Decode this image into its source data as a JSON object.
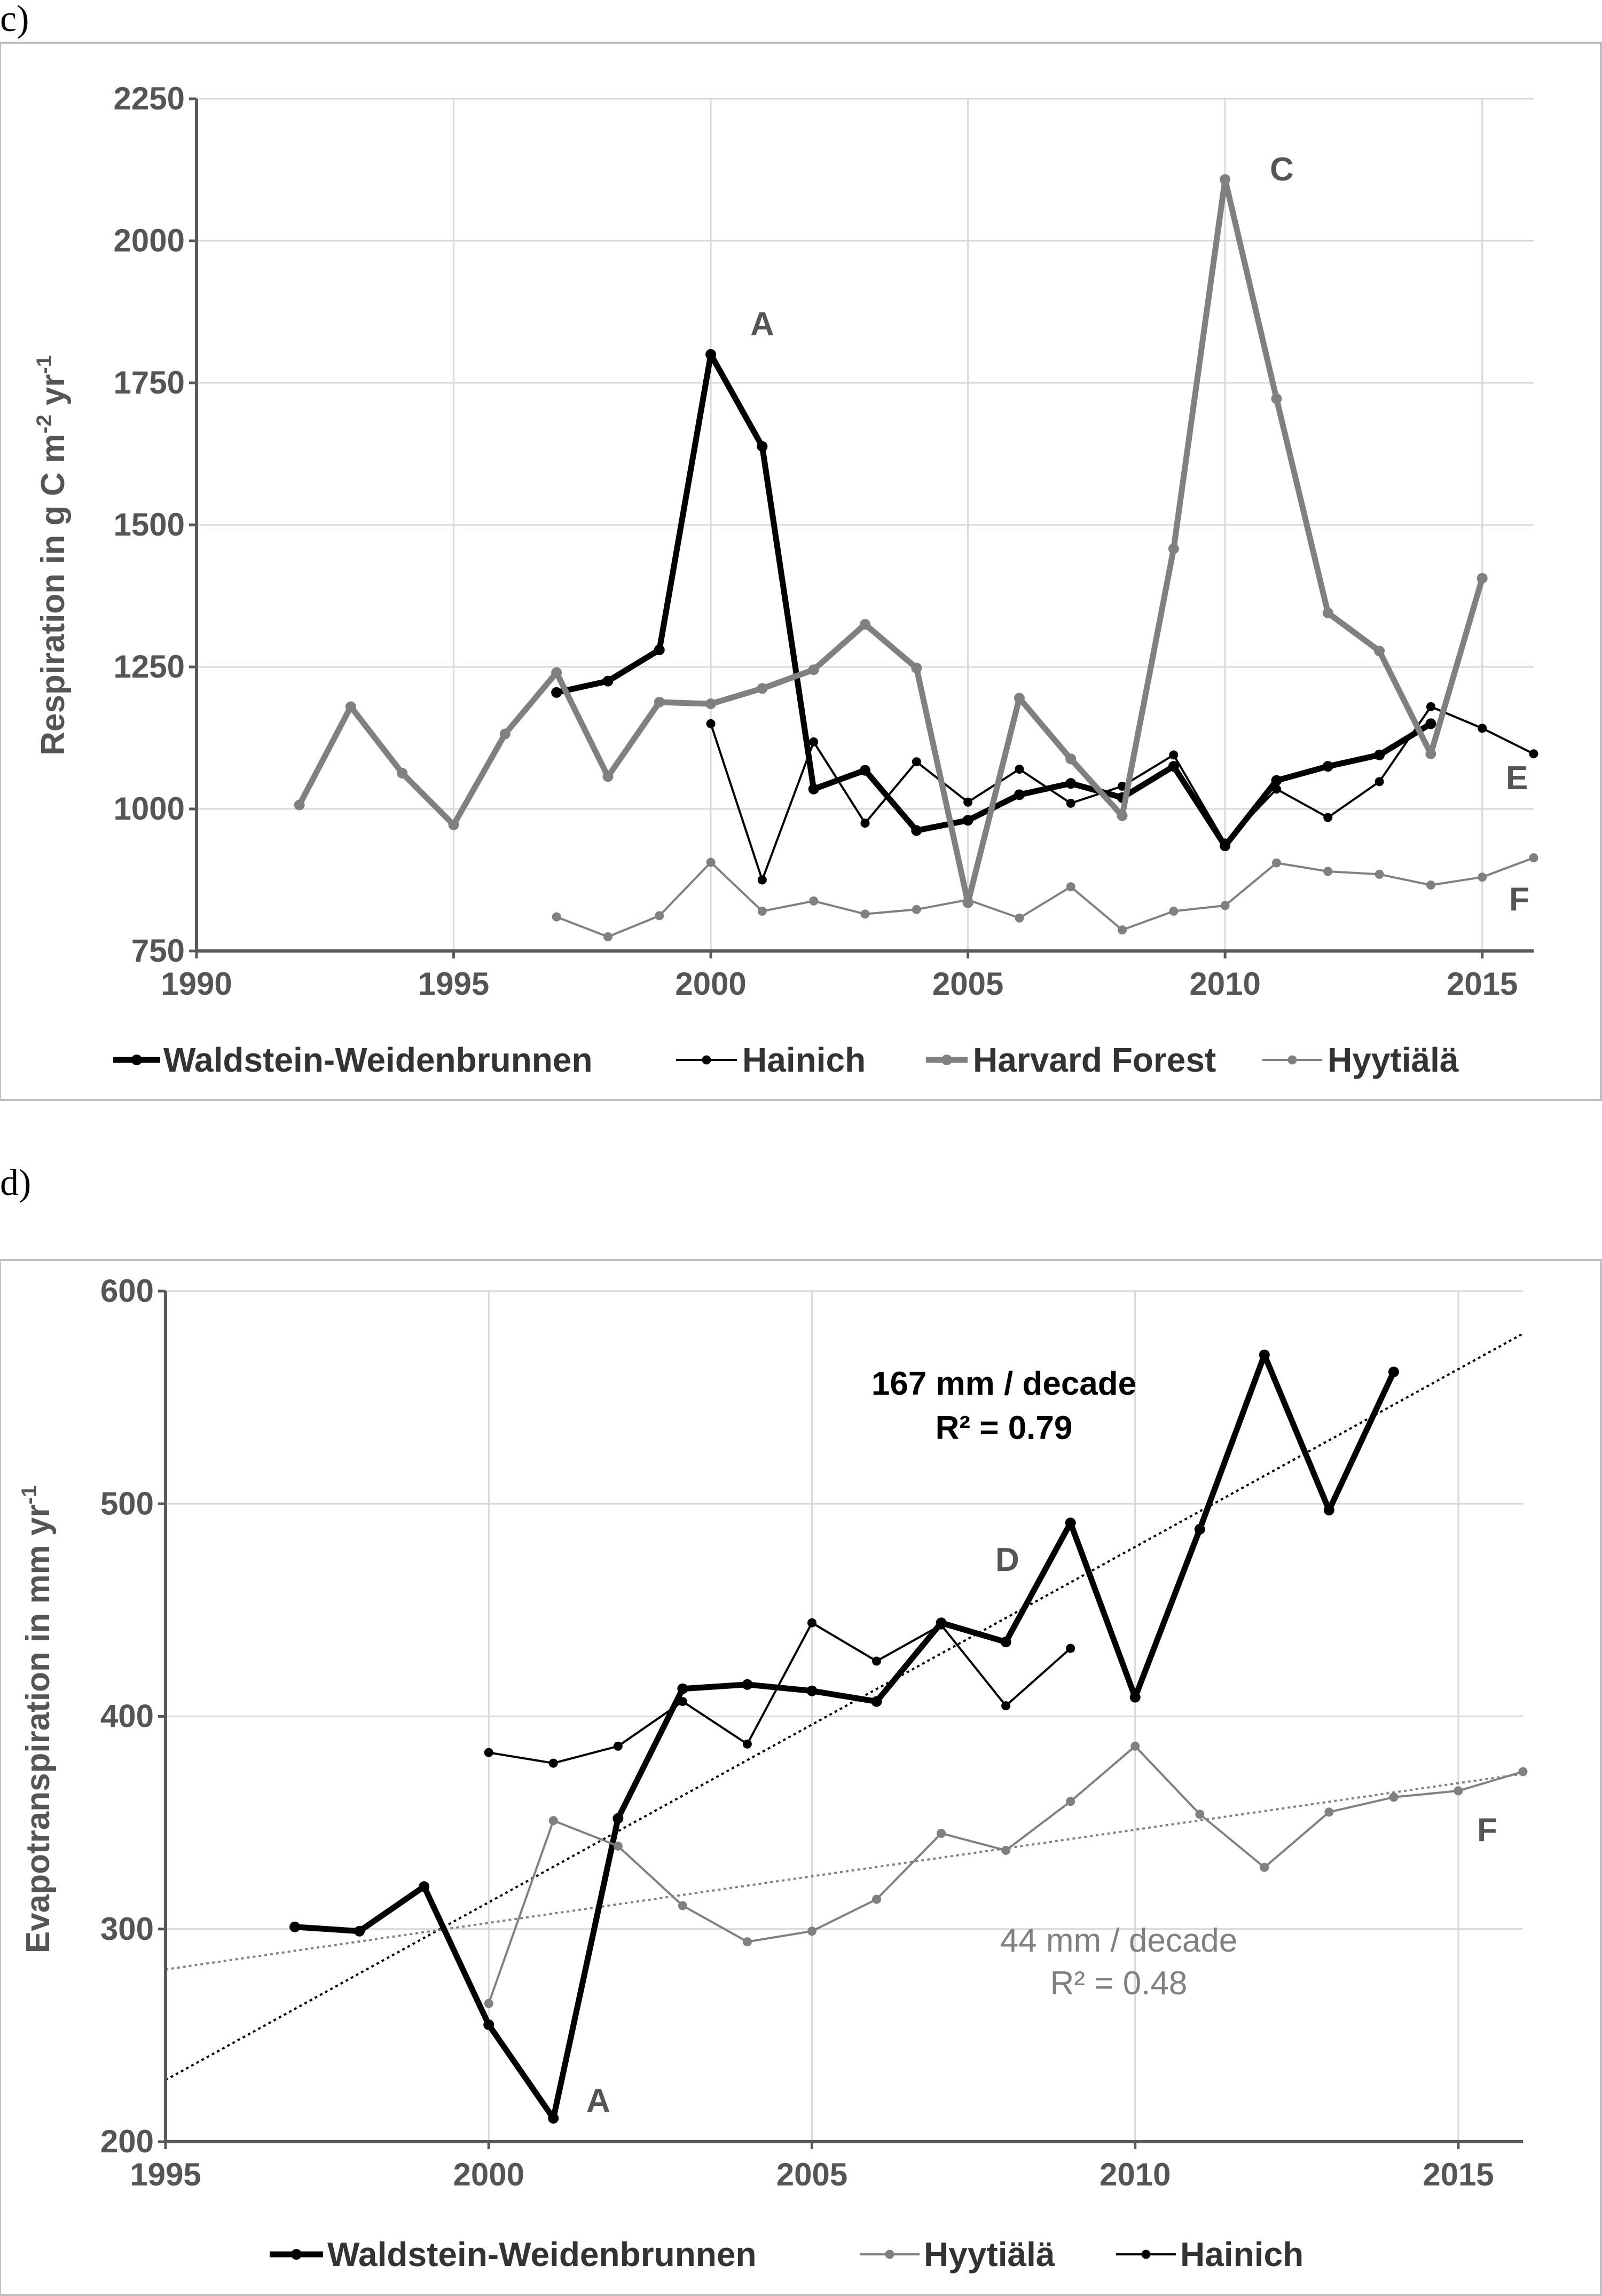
{
  "chart_data": [
    {
      "panel_label": "c)",
      "type": "line",
      "ylabel": {
        "main": "Respiration in g C m",
        "sup1": "-2",
        "mid": " yr",
        "sup2": "-1"
      },
      "xlim": [
        1990,
        2016
      ],
      "ylim": [
        750,
        2250
      ],
      "xticks": [
        "1990",
        "1995",
        "2000",
        "2005",
        "2010",
        "2015"
      ],
      "yticks": [
        "750",
        "1000",
        "1250",
        "1500",
        "1750",
        "2000",
        "2250"
      ],
      "grid": true,
      "legend_position": "bottom",
      "series": [
        {
          "name": "Waldstein-Weidenbrunnen",
          "color": "#000000",
          "width": "thick",
          "x": [
            1997,
            1998,
            1999,
            2000,
            2001,
            2002,
            2003,
            2004,
            2005,
            2006,
            2007,
            2008,
            2009,
            2010,
            2011,
            2012,
            2013,
            2014
          ],
          "y": [
            1205,
            1225,
            1280,
            1800,
            1638,
            1035,
            1068,
            962,
            980,
            1025,
            1045,
            1020,
            1075,
            935,
            1050,
            1075,
            1095,
            1150
          ]
        },
        {
          "name": "Hainich",
          "color": "#000000",
          "width": "thin",
          "x": [
            2000,
            2001,
            2002,
            2003,
            2004,
            2005,
            2006,
            2007,
            2008,
            2009,
            2010,
            2011,
            2012,
            2013,
            2014,
            2015,
            2016
          ],
          "y": [
            1150,
            875,
            1118,
            975,
            1083,
            1012,
            1070,
            1010,
            1040,
            1095,
            940,
            1035,
            985,
            1048,
            1180,
            1142,
            1097
          ]
        },
        {
          "name": "Harvard Forest",
          "color": "#808080",
          "width": "thick",
          "x": [
            1992,
            1993,
            1994,
            1995,
            1996,
            1997,
            1998,
            1999,
            2000,
            2001,
            2002,
            2003,
            2004,
            2005,
            2006,
            2007,
            2008,
            2009,
            2010,
            2011,
            2012,
            2013,
            2014,
            2015
          ],
          "y": [
            1007,
            1180,
            1063,
            972,
            1132,
            1240,
            1057,
            1188,
            1185,
            1212,
            1245,
            1325,
            1248,
            835,
            1195,
            1088,
            988,
            1458,
            2108,
            1722,
            1345,
            1278,
            1097,
            1406
          ]
        },
        {
          "name": "Hyytiälä",
          "color": "#808080",
          "width": "thin",
          "x": [
            1997,
            1998,
            1999,
            2000,
            2001,
            2002,
            2003,
            2004,
            2005,
            2006,
            2007,
            2008,
            2009,
            2010,
            2011,
            2012,
            2013,
            2014,
            2015,
            2016
          ],
          "y": [
            810,
            775,
            812,
            906,
            820,
            838,
            815,
            823,
            840,
            808,
            863,
            787,
            820,
            830,
            905,
            890,
            885,
            866,
            880,
            914
          ]
        }
      ],
      "annotations": [
        "A",
        "C",
        "E",
        "F"
      ]
    },
    {
      "panel_label": "d)",
      "type": "line",
      "ylabel": {
        "main": "Evapotranspiration in mm yr",
        "sup": "-1"
      },
      "xlim": [
        1995,
        2016
      ],
      "ylim": [
        200,
        600
      ],
      "xticks": [
        "1995",
        "2000",
        "2005",
        "2010",
        "2015"
      ],
      "yticks": [
        "200",
        "300",
        "400",
        "500",
        "600"
      ],
      "grid": true,
      "legend_position": "bottom",
      "series": [
        {
          "name": "Waldstein-Weidenbrunnen",
          "color": "#000000",
          "width": "thick",
          "x": [
            1997,
            1998,
            1999,
            2000,
            2001,
            2002,
            2003,
            2004,
            2005,
            2006,
            2007,
            2008,
            2009,
            2010,
            2011,
            2012,
            2013,
            2014
          ],
          "y": [
            301,
            299,
            320,
            255,
            211,
            352,
            413,
            415,
            412,
            407,
            444,
            435,
            491,
            409,
            488,
            570,
            497,
            562
          ]
        },
        {
          "name": "Hyytiälä",
          "color": "#808080",
          "width": "thin",
          "x": [
            2000,
            2001,
            2002,
            2003,
            2004,
            2005,
            2006,
            2007,
            2008,
            2009,
            2010,
            2011,
            2012,
            2013,
            2014,
            2015,
            2016
          ],
          "y": [
            265,
            351,
            339,
            311,
            294,
            299,
            314,
            345,
            337,
            360,
            386,
            354,
            329,
            355,
            362,
            365,
            374
          ]
        },
        {
          "name": "Hainich",
          "color": "#000000",
          "width": "thin",
          "x": [
            2000,
            2001,
            2002,
            2003,
            2004,
            2005,
            2006,
            2007,
            2008,
            2009
          ],
          "y": [
            383,
            378,
            386,
            407,
            387,
            444,
            426,
            443,
            405,
            432
          ]
        }
      ],
      "trendlines": [
        {
          "color": "#000000",
          "x": [
            1995,
            2016
          ],
          "y": [
            229,
            580
          ],
          "label1": "167 mm / decade",
          "label2": "R² = 0.79"
        },
        {
          "color": "#808080",
          "x": [
            1995,
            2016
          ],
          "y": [
            281,
            373
          ],
          "label1": "44 mm / decade",
          "label2": "R² = 0.48"
        }
      ],
      "annotations": [
        "A",
        "D",
        "F"
      ]
    }
  ]
}
